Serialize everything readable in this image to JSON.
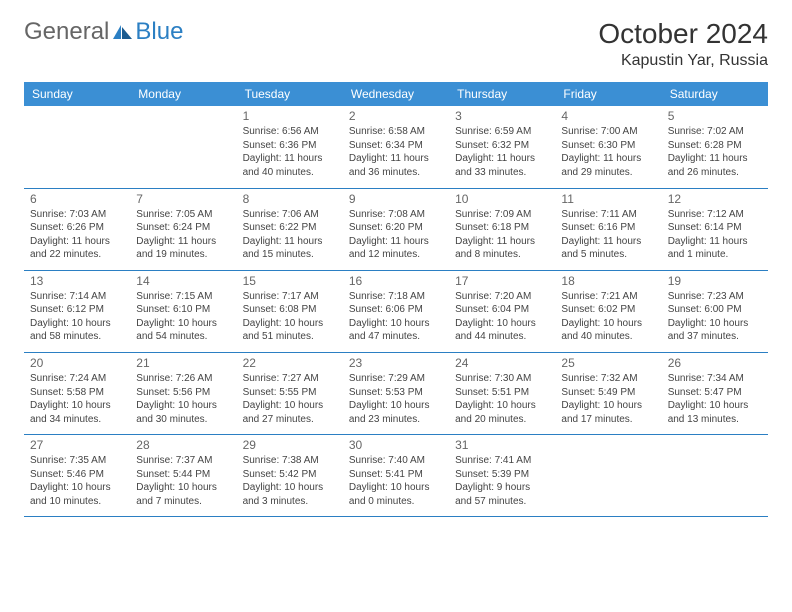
{
  "logo": {
    "text1": "General",
    "text2": "Blue"
  },
  "title": "October 2024",
  "location": "Kapustin Yar, Russia",
  "colors": {
    "header_bg": "#3b8fd4",
    "header_text": "#ffffff",
    "border": "#2b7fc3",
    "logo_gray": "#666666",
    "logo_blue": "#2b7fc3"
  },
  "weekdays": [
    "Sunday",
    "Monday",
    "Tuesday",
    "Wednesday",
    "Thursday",
    "Friday",
    "Saturday"
  ],
  "weeks": [
    [
      null,
      null,
      {
        "n": "1",
        "sr": "6:56 AM",
        "ss": "6:36 PM",
        "dl": "11 hours and 40 minutes."
      },
      {
        "n": "2",
        "sr": "6:58 AM",
        "ss": "6:34 PM",
        "dl": "11 hours and 36 minutes."
      },
      {
        "n": "3",
        "sr": "6:59 AM",
        "ss": "6:32 PM",
        "dl": "11 hours and 33 minutes."
      },
      {
        "n": "4",
        "sr": "7:00 AM",
        "ss": "6:30 PM",
        "dl": "11 hours and 29 minutes."
      },
      {
        "n": "5",
        "sr": "7:02 AM",
        "ss": "6:28 PM",
        "dl": "11 hours and 26 minutes."
      }
    ],
    [
      {
        "n": "6",
        "sr": "7:03 AM",
        "ss": "6:26 PM",
        "dl": "11 hours and 22 minutes."
      },
      {
        "n": "7",
        "sr": "7:05 AM",
        "ss": "6:24 PM",
        "dl": "11 hours and 19 minutes."
      },
      {
        "n": "8",
        "sr": "7:06 AM",
        "ss": "6:22 PM",
        "dl": "11 hours and 15 minutes."
      },
      {
        "n": "9",
        "sr": "7:08 AM",
        "ss": "6:20 PM",
        "dl": "11 hours and 12 minutes."
      },
      {
        "n": "10",
        "sr": "7:09 AM",
        "ss": "6:18 PM",
        "dl": "11 hours and 8 minutes."
      },
      {
        "n": "11",
        "sr": "7:11 AM",
        "ss": "6:16 PM",
        "dl": "11 hours and 5 minutes."
      },
      {
        "n": "12",
        "sr": "7:12 AM",
        "ss": "6:14 PM",
        "dl": "11 hours and 1 minute."
      }
    ],
    [
      {
        "n": "13",
        "sr": "7:14 AM",
        "ss": "6:12 PM",
        "dl": "10 hours and 58 minutes."
      },
      {
        "n": "14",
        "sr": "7:15 AM",
        "ss": "6:10 PM",
        "dl": "10 hours and 54 minutes."
      },
      {
        "n": "15",
        "sr": "7:17 AM",
        "ss": "6:08 PM",
        "dl": "10 hours and 51 minutes."
      },
      {
        "n": "16",
        "sr": "7:18 AM",
        "ss": "6:06 PM",
        "dl": "10 hours and 47 minutes."
      },
      {
        "n": "17",
        "sr": "7:20 AM",
        "ss": "6:04 PM",
        "dl": "10 hours and 44 minutes."
      },
      {
        "n": "18",
        "sr": "7:21 AM",
        "ss": "6:02 PM",
        "dl": "10 hours and 40 minutes."
      },
      {
        "n": "19",
        "sr": "7:23 AM",
        "ss": "6:00 PM",
        "dl": "10 hours and 37 minutes."
      }
    ],
    [
      {
        "n": "20",
        "sr": "7:24 AM",
        "ss": "5:58 PM",
        "dl": "10 hours and 34 minutes."
      },
      {
        "n": "21",
        "sr": "7:26 AM",
        "ss": "5:56 PM",
        "dl": "10 hours and 30 minutes."
      },
      {
        "n": "22",
        "sr": "7:27 AM",
        "ss": "5:55 PM",
        "dl": "10 hours and 27 minutes."
      },
      {
        "n": "23",
        "sr": "7:29 AM",
        "ss": "5:53 PM",
        "dl": "10 hours and 23 minutes."
      },
      {
        "n": "24",
        "sr": "7:30 AM",
        "ss": "5:51 PM",
        "dl": "10 hours and 20 minutes."
      },
      {
        "n": "25",
        "sr": "7:32 AM",
        "ss": "5:49 PM",
        "dl": "10 hours and 17 minutes."
      },
      {
        "n": "26",
        "sr": "7:34 AM",
        "ss": "5:47 PM",
        "dl": "10 hours and 13 minutes."
      }
    ],
    [
      {
        "n": "27",
        "sr": "7:35 AM",
        "ss": "5:46 PM",
        "dl": "10 hours and 10 minutes."
      },
      {
        "n": "28",
        "sr": "7:37 AM",
        "ss": "5:44 PM",
        "dl": "10 hours and 7 minutes."
      },
      {
        "n": "29",
        "sr": "7:38 AM",
        "ss": "5:42 PM",
        "dl": "10 hours and 3 minutes."
      },
      {
        "n": "30",
        "sr": "7:40 AM",
        "ss": "5:41 PM",
        "dl": "10 hours and 0 minutes."
      },
      {
        "n": "31",
        "sr": "7:41 AM",
        "ss": "5:39 PM",
        "dl": "9 hours and 57 minutes."
      },
      null,
      null
    ]
  ],
  "labels": {
    "sunrise": "Sunrise: ",
    "sunset": "Sunset: ",
    "daylight": "Daylight: "
  }
}
